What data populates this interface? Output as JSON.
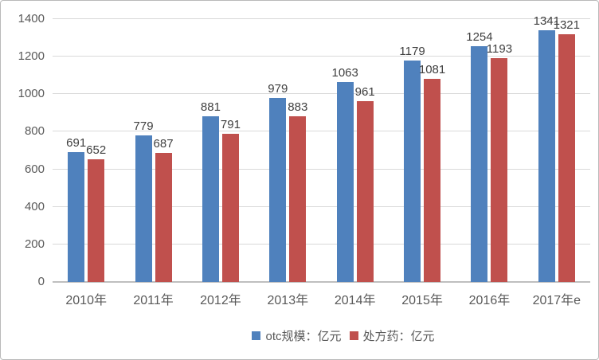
{
  "chart_data": {
    "type": "bar",
    "title": "",
    "xlabel": "",
    "ylabel": "",
    "categories": [
      "2010年",
      "2011年",
      "2012年",
      "2013年",
      "2014年",
      "2015年",
      "2016年",
      "2017年e"
    ],
    "series": [
      {
        "name": "otc规模：亿元",
        "color": "#4f81bd",
        "values": [
          691,
          779,
          881,
          979,
          1063,
          1179,
          1254,
          1341
        ]
      },
      {
        "name": "处方药：亿元",
        "color": "#c0504d",
        "values": [
          652,
          687,
          791,
          883,
          961,
          1081,
          1193,
          1321
        ]
      }
    ],
    "ylim": [
      0,
      1400
    ],
    "yticks": [
      0,
      200,
      400,
      600,
      800,
      1000,
      1200,
      1400
    ],
    "grid": true,
    "data_labels": true,
    "legend_position": "bottom",
    "colors": {
      "gridline": "#d9d9d9",
      "axis_line": "#bfbfbf",
      "tick_text": "#595959",
      "label_text": "#3f3f3f",
      "frame_border": "#b9b9b9",
      "background": "#ffffff"
    }
  }
}
